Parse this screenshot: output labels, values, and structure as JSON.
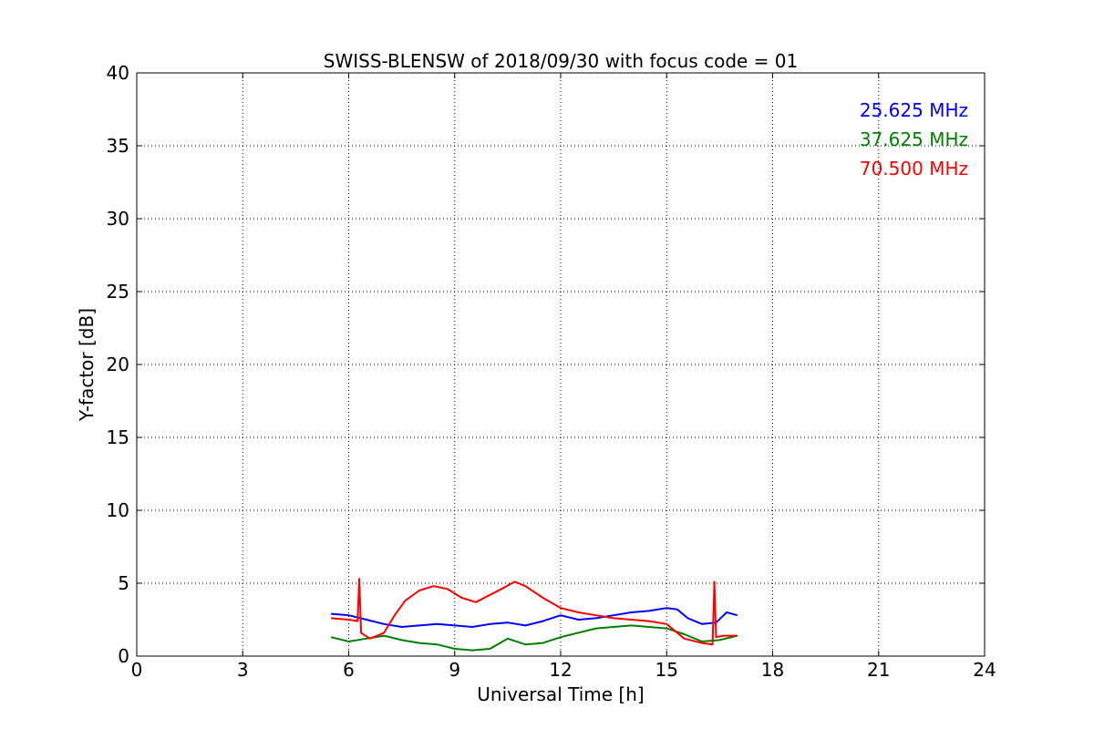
{
  "chart_data": {
    "type": "line",
    "title": "SWISS-BLENSW of 2018/09/30 with focus code = 01",
    "xlabel": "Universal Time [h]",
    "ylabel": "Y-factor [dB]",
    "xlim": [
      0,
      24
    ],
    "ylim": [
      0,
      40
    ],
    "xticks": [
      0,
      3,
      6,
      9,
      12,
      15,
      18,
      21,
      24
    ],
    "yticks": [
      0,
      5,
      10,
      15,
      20,
      25,
      30,
      35,
      40
    ],
    "grid": true,
    "legend_position": "top-right",
    "series": [
      {
        "name": "25.625 MHz",
        "color": "#0000ff",
        "x": [
          5.5,
          6.0,
          6.5,
          7.0,
          7.5,
          8.0,
          8.5,
          9.0,
          9.5,
          10.0,
          10.5,
          11.0,
          11.5,
          12.0,
          12.5,
          13.0,
          13.5,
          14.0,
          14.5,
          15.0,
          15.3,
          15.6,
          16.0,
          16.4,
          16.7,
          17.0
        ],
        "y": [
          2.9,
          2.8,
          2.5,
          2.2,
          2.0,
          2.1,
          2.2,
          2.1,
          2.0,
          2.2,
          2.3,
          2.1,
          2.4,
          2.8,
          2.5,
          2.6,
          2.8,
          3.0,
          3.1,
          3.3,
          3.2,
          2.6,
          2.2,
          2.3,
          3.0,
          2.8
        ]
      },
      {
        "name": "37.625 MHz",
        "color": "#008000",
        "x": [
          5.5,
          6.0,
          6.5,
          7.0,
          7.5,
          8.0,
          8.5,
          9.0,
          9.5,
          10.0,
          10.5,
          11.0,
          11.5,
          12.0,
          12.5,
          13.0,
          13.5,
          14.0,
          14.5,
          15.0,
          15.5,
          16.0,
          16.5,
          17.0
        ],
        "y": [
          1.3,
          1.0,
          1.2,
          1.4,
          1.1,
          0.9,
          0.8,
          0.5,
          0.4,
          0.5,
          1.2,
          0.8,
          0.9,
          1.3,
          1.6,
          1.9,
          2.0,
          2.1,
          2.0,
          1.9,
          1.5,
          1.0,
          1.1,
          1.4
        ]
      },
      {
        "name": "70.500 MHz",
        "color": "#ff0000",
        "x": [
          5.5,
          6.0,
          6.25,
          6.3,
          6.35,
          6.6,
          7.0,
          7.3,
          7.6,
          8.0,
          8.4,
          8.8,
          9.2,
          9.6,
          10.0,
          10.4,
          10.7,
          11.0,
          11.5,
          12.0,
          12.5,
          13.0,
          13.5,
          14.0,
          14.5,
          15.0,
          15.5,
          16.0,
          16.3,
          16.35,
          16.4,
          16.6,
          17.0
        ],
        "y": [
          2.6,
          2.5,
          2.4,
          5.3,
          1.6,
          1.2,
          1.6,
          2.8,
          3.8,
          4.5,
          4.8,
          4.6,
          4.0,
          3.7,
          4.2,
          4.7,
          5.1,
          4.8,
          4.0,
          3.3,
          3.0,
          2.8,
          2.6,
          2.5,
          2.4,
          2.2,
          1.2,
          0.9,
          0.8,
          5.1,
          1.3,
          1.4,
          1.4
        ]
      }
    ]
  }
}
